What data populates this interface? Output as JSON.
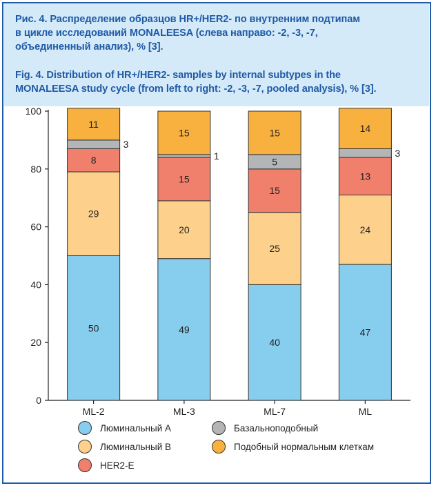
{
  "caption": {
    "ru_lines": [
      "Рис. 4. Распределение образцов HR+/HER2- по внутренним подтипам",
      "в цикле исследований MONALEESA (слева направо: -2, -3, -7,",
      "объединенный анализ), % [3]."
    ],
    "en_lines": [
      "Fig. 4. Distribution of HR+/HER2- samples by internal subtypes in the",
      "MONALEESA study cycle (from left to right: -2, -3, -7, pooled analysis), % [3]."
    ]
  },
  "colors": {
    "frame": "#1f5aa6",
    "header_bg": "#d5eaf8",
    "caption_text": "#1f5aa6"
  },
  "chart_data": {
    "type": "bar",
    "stacked": true,
    "categories": [
      "ML-2",
      "ML-3",
      "ML-7",
      "ML"
    ],
    "ylim": [
      0,
      100
    ],
    "yticks": [
      0,
      20,
      40,
      60,
      80,
      100
    ],
    "grid": false,
    "legend_position": "bottom",
    "series": [
      {
        "name": "Люминальный A",
        "color": "#87cdee",
        "values": [
          50,
          49,
          40,
          47
        ],
        "labels": [
          "50",
          "49",
          "40",
          "47"
        ]
      },
      {
        "name": "Люминальный B",
        "color": "#fdd08c",
        "values": [
          29,
          20,
          25,
          24
        ],
        "labels": [
          "29",
          "20",
          "25",
          "24"
        ]
      },
      {
        "name": "HER2-E",
        "color": "#f07f6b",
        "values": [
          8,
          15,
          15,
          13
        ],
        "labels": [
          "8",
          "15",
          "15",
          "13"
        ]
      },
      {
        "name": "Базальноподобный",
        "color": "#b4b5b7",
        "values": [
          3,
          1,
          5,
          3
        ],
        "labels": [
          "3",
          "1",
          "5",
          "3"
        ],
        "label_outside": [
          true,
          true,
          false,
          true
        ]
      },
      {
        "name": "Подобный нормальным клеткам",
        "color": "#f8b13f",
        "values": [
          11,
          15,
          15,
          14
        ],
        "labels": [
          "11",
          "15",
          "15",
          "14"
        ]
      }
    ],
    "legend_order": [
      0,
      3,
      1,
      4,
      2
    ]
  }
}
